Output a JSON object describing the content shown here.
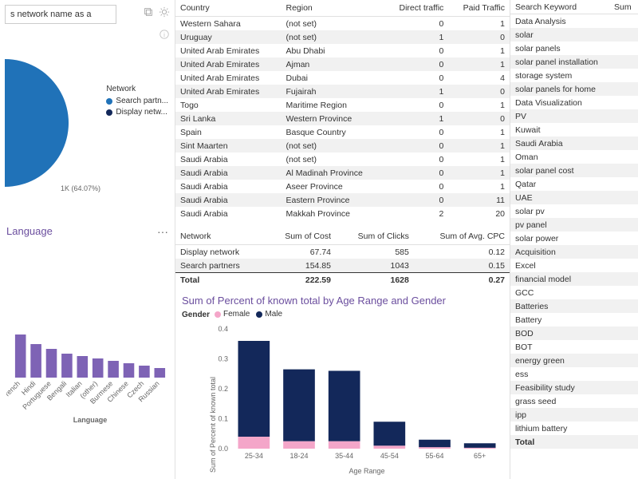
{
  "colors": {
    "primary_blue": "#2072b8",
    "dark_blue": "#13285a",
    "purple_title": "#6b4e9e",
    "bar_lang": "#7e63b5",
    "pink": "#f4a6c9",
    "grid": "#e0e0e0",
    "row_alt": "#f1f1f1"
  },
  "left": {
    "search_placeholder": "s network name as a",
    "pie": {
      "legend_title": "Network",
      "series": [
        {
          "label": "Search partn...",
          "color": "#2072b8",
          "pct": 64.07
        },
        {
          "label": "Display netw...",
          "color": "#13285a",
          "pct": 35.93
        }
      ],
      "anno": "1K (64.07%)"
    },
    "language": {
      "title": "Language",
      "xlabel": "Language",
      "categories": [
        "French",
        "Hindi",
        "Portuguese",
        "Bengali",
        "Italian",
        "(other)",
        "Burmese",
        "Chinese",
        "Czech",
        "Russian"
      ],
      "values": [
        18,
        14,
        12,
        10,
        9,
        8,
        7,
        6,
        5,
        4
      ],
      "ymax": 20,
      "bar_color": "#7e63b5"
    }
  },
  "center": {
    "traffic": {
      "columns": [
        "Country",
        "Region",
        "Direct traffic",
        "Paid Traffic"
      ],
      "rows": [
        [
          "Western Sahara",
          "(not set)",
          "0",
          "1"
        ],
        [
          "Uruguay",
          "(not set)",
          "1",
          "0"
        ],
        [
          "United Arab Emirates",
          "Abu Dhabi",
          "0",
          "1"
        ],
        [
          "United Arab Emirates",
          "Ajman",
          "0",
          "1"
        ],
        [
          "United Arab Emirates",
          "Dubai",
          "0",
          "4"
        ],
        [
          "United Arab Emirates",
          "Fujairah",
          "1",
          "0"
        ],
        [
          "Togo",
          "Maritime Region",
          "0",
          "1"
        ],
        [
          "Sri Lanka",
          "Western Province",
          "1",
          "0"
        ],
        [
          "Spain",
          "Basque Country",
          "0",
          "1"
        ],
        [
          "Sint Maarten",
          "(not set)",
          "0",
          "1"
        ],
        [
          "Saudi Arabia",
          "(not set)",
          "0",
          "1"
        ],
        [
          "Saudi Arabia",
          "Al Madinah Province",
          "0",
          "1"
        ],
        [
          "Saudi Arabia",
          "Aseer Province",
          "0",
          "1"
        ],
        [
          "Saudi Arabia",
          "Eastern Province",
          "0",
          "11"
        ],
        [
          "Saudi Arabia",
          "Makkah Province",
          "2",
          "20"
        ]
      ]
    },
    "network": {
      "columns": [
        "Network",
        "Sum of Cost",
        "Sum of Clicks",
        "Sum of Avg. CPC"
      ],
      "rows": [
        [
          "Display network",
          "67.74",
          "585",
          "0.12"
        ],
        [
          "Search partners",
          "154.85",
          "1043",
          "0.15"
        ]
      ],
      "total": [
        "Total",
        "222.59",
        "1628",
        "0.27"
      ]
    },
    "age_chart": {
      "title": "Sum of Percent of known total by Age Range and Gender",
      "type": "stacked_bar",
      "legend_label": "Gender",
      "legend": [
        {
          "label": "Female",
          "color": "#f4a6c9"
        },
        {
          "label": "Male",
          "color": "#13285a"
        }
      ],
      "xlabel": "Age Range",
      "ylabel": "Sum of Percent of known total",
      "ylim": [
        0,
        0.4
      ],
      "yticks": [
        0.0,
        0.1,
        0.2,
        0.3,
        0.4
      ],
      "categories": [
        "25-34",
        "18-24",
        "35-44",
        "45-54",
        "55-64",
        "65+"
      ],
      "female": [
        0.04,
        0.025,
        0.025,
        0.01,
        0.005,
        0.003
      ],
      "male": [
        0.32,
        0.24,
        0.235,
        0.08,
        0.025,
        0.015
      ]
    }
  },
  "right": {
    "columns": [
      "Search Keyword",
      "Sum"
    ],
    "keywords": [
      "Data Analysis",
      "solar",
      "solar panels",
      "solar panel installation",
      "storage system",
      "solar panels for home",
      "Data Visualization",
      "PV",
      "Kuwait",
      "Saudi Arabia",
      "Oman",
      "solar panel cost",
      "Qatar",
      "UAE",
      "solar pv",
      "pv panel",
      "solar power",
      "Acquisition",
      "Excel",
      "financial model",
      "GCC",
      "Batteries",
      "Battery",
      "BOD",
      "BOT",
      "energy green",
      "ess",
      "Feasibility study",
      "grass seed",
      "ipp",
      "lithium battery"
    ],
    "total_label": "Total"
  }
}
